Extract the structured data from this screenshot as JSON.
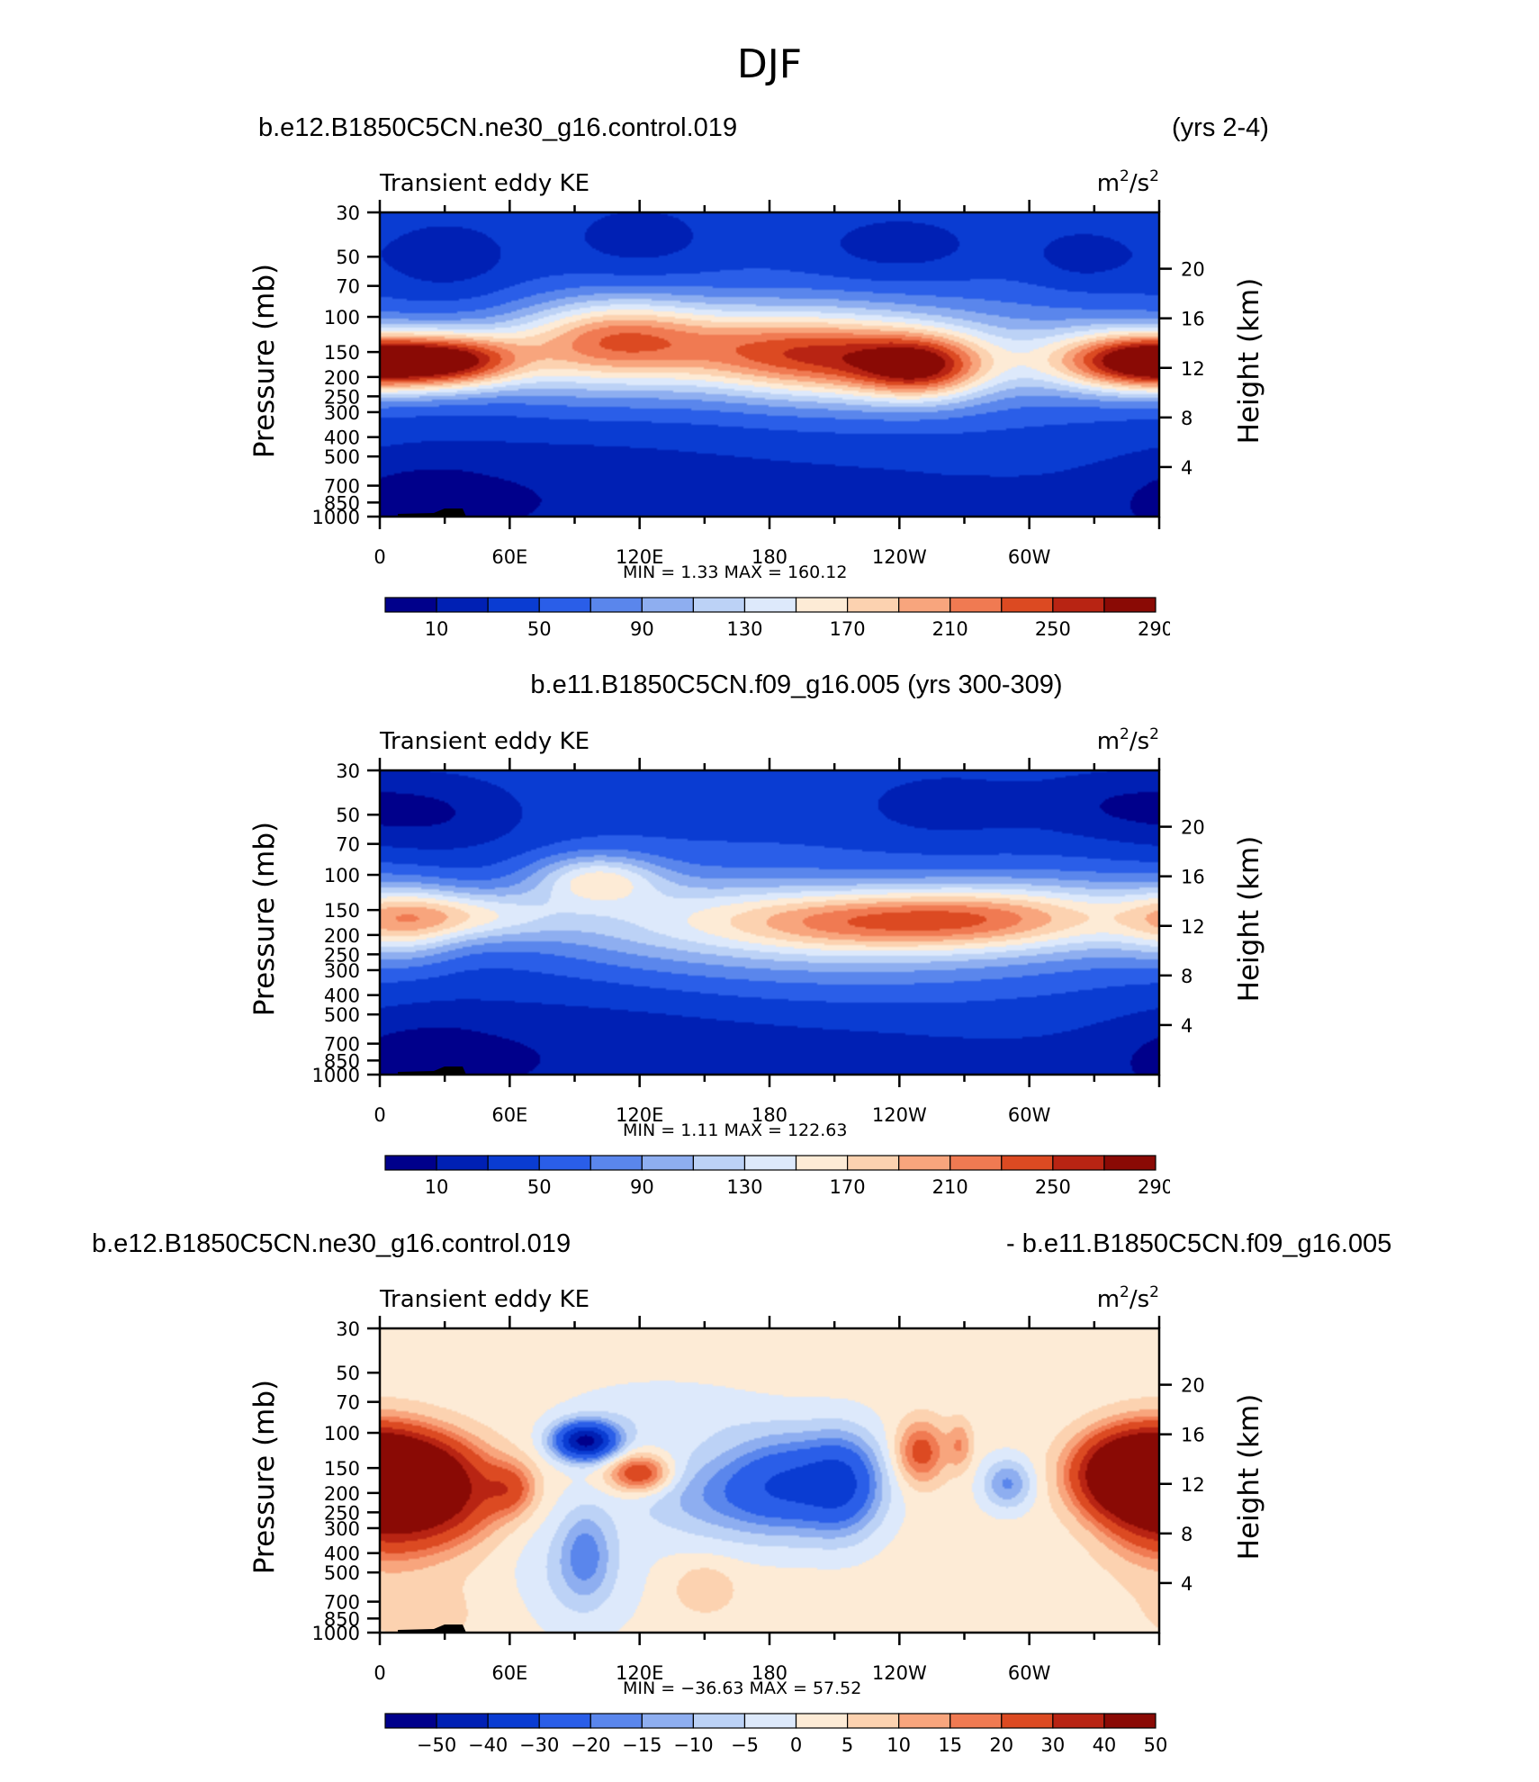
{
  "title": "DJF",
  "colors": {
    "blue_scale": [
      "#00008b",
      "#0020b4",
      "#0a3cd2",
      "#2a5ee8",
      "#5a86ec",
      "#8eaef0",
      "#bcd2f6",
      "#dde9fb",
      "#fdebd6",
      "#fcd2b0",
      "#f8a57d",
      "#f07a52",
      "#dc4a22",
      "#b82413",
      "#8a0a05"
    ],
    "diff_scale": [
      "#00008b",
      "#0020b4",
      "#0a3cd2",
      "#2a5ee8",
      "#5a86ec",
      "#8eaef0",
      "#bcd2f6",
      "#dde9fb",
      "#fdebd6",
      "#fcd2b0",
      "#f8a57d",
      "#f07a52",
      "#dc4a22",
      "#b82413",
      "#8a0a05"
    ],
    "frame": "#000000"
  },
  "headers": {
    "p1_left": "b.e12.B1850C5CN.ne30_g16.control.019",
    "p1_right": "(yrs 2-4)",
    "p2_center": "b.e11.B1850C5CN.f09_g16.005 (yrs 300-309)",
    "p3_left": "b.e12.B1850C5CN.ne30_g16.control.019",
    "p3_right": "- b.e11.B1850C5CN.f09_g16.005"
  },
  "panels": [
    {
      "var": "Transient eddy KE",
      "units_base": "m",
      "units_sup1": "2",
      "units_mid": "/s",
      "units_sup2": "2",
      "ylabel": "Pressure  (mb)",
      "y2label": "Height  (km)",
      "minlabel": "MIN =",
      "minval": "1.33",
      "maxlabel": "MAX =",
      "maxval": "160.12"
    },
    {
      "var": "Transient eddy KE",
      "units_base": "m",
      "units_sup1": "2",
      "units_mid": "/s",
      "units_sup2": "2",
      "ylabel": "Pressure  (mb)",
      "y2label": "Height  (km)",
      "minlabel": "MIN =",
      "minval": "1.11",
      "maxlabel": "MAX =",
      "maxval": "122.63"
    },
    {
      "var": "Transient eddy KE",
      "units_base": "m",
      "units_sup1": "2",
      "units_mid": "/s",
      "units_sup2": "2",
      "ylabel": "Pressure  (mb)",
      "y2label": "Height  (km)",
      "minlabel": "MIN =",
      "minval": "−36.63",
      "maxlabel": "MAX =",
      "maxval": "57.52"
    }
  ],
  "colorbars": {
    "kinetic": [
      "10",
      "50",
      "90",
      "130",
      "170",
      "210",
      "250",
      "290"
    ],
    "diff": [
      "−50",
      "−40",
      "−30",
      "−20",
      "−15",
      "−10",
      "−5",
      "0",
      "5",
      "10",
      "15",
      "20",
      "30",
      "40",
      "50"
    ]
  },
  "chart_data": [
    {
      "type": "heatmap",
      "title": "Transient eddy KE",
      "ylabel": "Pressure  (mb)",
      "y2label": "Height  (km)",
      "x_ticks": [
        "0",
        "60E",
        "120E",
        "180",
        "120W",
        "60W"
      ],
      "y_ticks": [
        30,
        50,
        70,
        100,
        150,
        200,
        250,
        300,
        400,
        500,
        700,
        850,
        1000
      ],
      "y2_ticks": [
        20,
        16,
        12,
        8,
        4
      ],
      "levels": [
        10,
        30,
        50,
        70,
        90,
        110,
        130,
        150,
        170,
        190,
        210,
        230,
        250,
        270,
        290
      ],
      "min": 1.33,
      "max": 160.12
    },
    {
      "type": "heatmap",
      "title": "Transient eddy KE",
      "ylabel": "Pressure  (mb)",
      "y2label": "Height  (km)",
      "x_ticks": [
        "0",
        "60E",
        "120E",
        "180",
        "120W",
        "60W"
      ],
      "y_ticks": [
        30,
        50,
        70,
        100,
        150,
        200,
        250,
        300,
        400,
        500,
        700,
        850,
        1000
      ],
      "y2_ticks": [
        20,
        16,
        12,
        8,
        4
      ],
      "levels": [
        10,
        30,
        50,
        70,
        90,
        110,
        130,
        150,
        170,
        190,
        210,
        230,
        250,
        270,
        290
      ],
      "min": 1.11,
      "max": 122.63
    },
    {
      "type": "heatmap",
      "title": "Transient eddy KE",
      "ylabel": "Pressure  (mb)",
      "y2label": "Height  (km)",
      "x_ticks": [
        "0",
        "60E",
        "120E",
        "180",
        "120W",
        "60W"
      ],
      "y_ticks": [
        30,
        50,
        70,
        100,
        150,
        200,
        250,
        300,
        400,
        500,
        700,
        850,
        1000
      ],
      "y2_ticks": [
        20,
        16,
        12,
        8,
        4
      ],
      "levels": [
        -50,
        -40,
        -30,
        -20,
        -15,
        -10,
        -5,
        0,
        5,
        10,
        15,
        20,
        30,
        40,
        50
      ],
      "min": -36.63,
      "max": 57.52
    }
  ]
}
